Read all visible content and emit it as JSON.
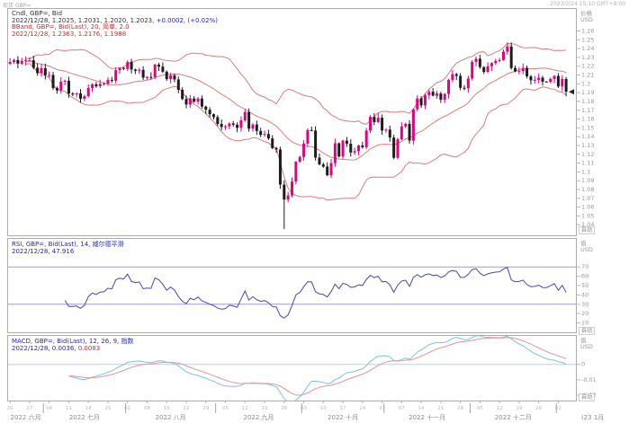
{
  "window": {
    "instrument_label": "现货 GBP=",
    "timestamp": "2023/2/24 15:10 GMT+8:00"
  },
  "main_panel": {
    "legend1": "Cndl, GBP=, Bid",
    "legend2a": "2022/12/28, 1.2025, 1.2031, 1.2020, 1.2023, ",
    "legend2b": "+0.0002, (+0.02%)",
    "legend3": "BBand, GBP=, Bid(Last), 20, 简单, 2.0",
    "legend4": "2022/12/28, 1.2363, 1.2176, 1.1988"
  },
  "rsi_panel": {
    "legend1": "RSI, GBP=, Bid(Last), 14, 威尔德平滑",
    "legend2": "2022/12/28, 47.916"
  },
  "macd_panel": {
    "legend1": "MACD, GBP=, Bid(Last), 12, 26, 9, 指数",
    "legend2a": "2022/12/28, 0.0036, ",
    "legend2b": "0.0083"
  },
  "axes": {
    "price_title": [
      "价格",
      "USD"
    ],
    "value_title": [
      "值",
      "USD"
    ],
    "auto_label": "自动",
    "time": {
      "months": [
        "2022 六月",
        "2022 七月",
        "2022 八月",
        "2022 九月",
        "2022 十月",
        "2022 十一月",
        "2022 十二月"
      ],
      "overflow": "(23 1月",
      "start_date": "2022-06-20",
      "pad_business_days": 2
    }
  },
  "colors": {
    "candle_up": "#e6007e",
    "candle_down": "#1c1c1c",
    "bband": "#e07a7a",
    "legend_blue": "#2424c8",
    "legend_red": "#cc2a2a",
    "rsi_line": "#4545c4",
    "rsi_band": "#9c9cd2",
    "macd_line": "#79c3e6",
    "signal_line": "#e49494",
    "zero_line": "#aad6ee",
    "axis_text": "#979797",
    "panel_border": "#acacac",
    "day_tick_text": "#b8b8b8",
    "month_text": "#8c8c8c",
    "marker": "#222222"
  },
  "chart_data": [
    {
      "type": "candlestick",
      "name": "Cndl, GBP=, Bid",
      "instrument": "GBP=",
      "interval": "daily",
      "start_date": "2022-06-20",
      "cursor_date": "2022/12/28",
      "cursor_candle": {
        "open": 1.2025,
        "high": 1.2031,
        "low": 1.202,
        "close": 1.2023,
        "net_change": "+0.0002",
        "pct_change": "+0.02%"
      },
      "ylim": [
        1.028,
        1.285
      ],
      "ytick_max": 1.26,
      "ytick_min": 1.04,
      "ytick_step": 0.01,
      "closes": [
        1.2248,
        1.2271,
        1.2229,
        1.226,
        1.2268,
        1.2268,
        1.2183,
        1.2122,
        1.2178,
        1.2098,
        1.21,
        1.1952,
        1.1925,
        1.2025,
        1.2035,
        1.189,
        1.1886,
        1.1891,
        1.183,
        1.186,
        1.1953,
        1.1995,
        1.1972,
        1.2,
        1.2003,
        1.2045,
        1.2035,
        1.2155,
        1.218,
        1.217,
        1.2248,
        1.2163,
        1.2148,
        1.2158,
        1.207,
        1.2078,
        1.2075,
        1.2218,
        1.2195,
        1.2138,
        1.2053,
        1.2095,
        1.205,
        1.1932,
        1.1827,
        1.1765,
        1.1834,
        1.1797,
        1.1833,
        1.1742,
        1.1706,
        1.1655,
        1.1622,
        1.1544,
        1.151,
        1.1517,
        1.155,
        1.1535,
        1.15,
        1.1585,
        1.168,
        1.1491,
        1.1538,
        1.1465,
        1.142,
        1.143,
        1.138,
        1.127,
        1.1255,
        1.0856,
        1.0686,
        1.0733,
        1.089,
        1.1115,
        1.117,
        1.1322,
        1.1475,
        1.147,
        1.1162,
        1.1085,
        1.106,
        1.0962,
        1.11,
        1.1325,
        1.1175,
        1.1355,
        1.132,
        1.122,
        1.1235,
        1.13,
        1.128,
        1.147,
        1.1625,
        1.1565,
        1.1615,
        1.147,
        1.148,
        1.139,
        1.116,
        1.137,
        1.1515,
        1.1545,
        1.1355,
        1.171,
        1.1835,
        1.1755,
        1.187,
        1.191,
        1.1865,
        1.189,
        1.182,
        1.1885,
        1.2045,
        1.211,
        1.209,
        1.1955,
        1.195,
        1.206,
        1.225,
        1.2285,
        1.219,
        1.2135,
        1.22,
        1.2235,
        1.226,
        1.227,
        1.2365,
        1.2425,
        1.218,
        1.214,
        1.2145,
        1.218,
        1.2085,
        1.204,
        1.2045,
        1.207,
        1.2025,
        1.2023,
        1.2055,
        1.209,
        1.197,
        1.2055,
        1.191
      ],
      "high_overrides": {
        "137": 1.2031
      },
      "low_overrides": {
        "70": 1.035,
        "137": 1.202
      },
      "overlay": {
        "name": "BBand",
        "period": 20,
        "ma_type": "简单",
        "stdev": 2.0,
        "cursor_values": {
          "upper": 1.2363,
          "middle": 1.2176,
          "lower": 1.1988
        }
      }
    },
    {
      "type": "line",
      "name": "RSI",
      "period": 14,
      "smoothing": "威尔德平滑",
      "derived_from": "closes",
      "cursor_value": 47.916,
      "bands": [
        70,
        30
      ],
      "ylim": [
        0,
        100
      ],
      "yticks": [
        70,
        60,
        50,
        40,
        30,
        20,
        10
      ]
    },
    {
      "type": "line",
      "name": "MACD",
      "fast": 12,
      "slow": 26,
      "signal": 9,
      "ma_type": "指数",
      "derived_from": "closes",
      "cursor_macd": 0.0036,
      "cursor_signal": 0.0083,
      "ylim": [
        -0.0235,
        0.0185
      ],
      "yticks": [
        0,
        -0.01,
        -0.02
      ],
      "zero_line": 0
    }
  ]
}
